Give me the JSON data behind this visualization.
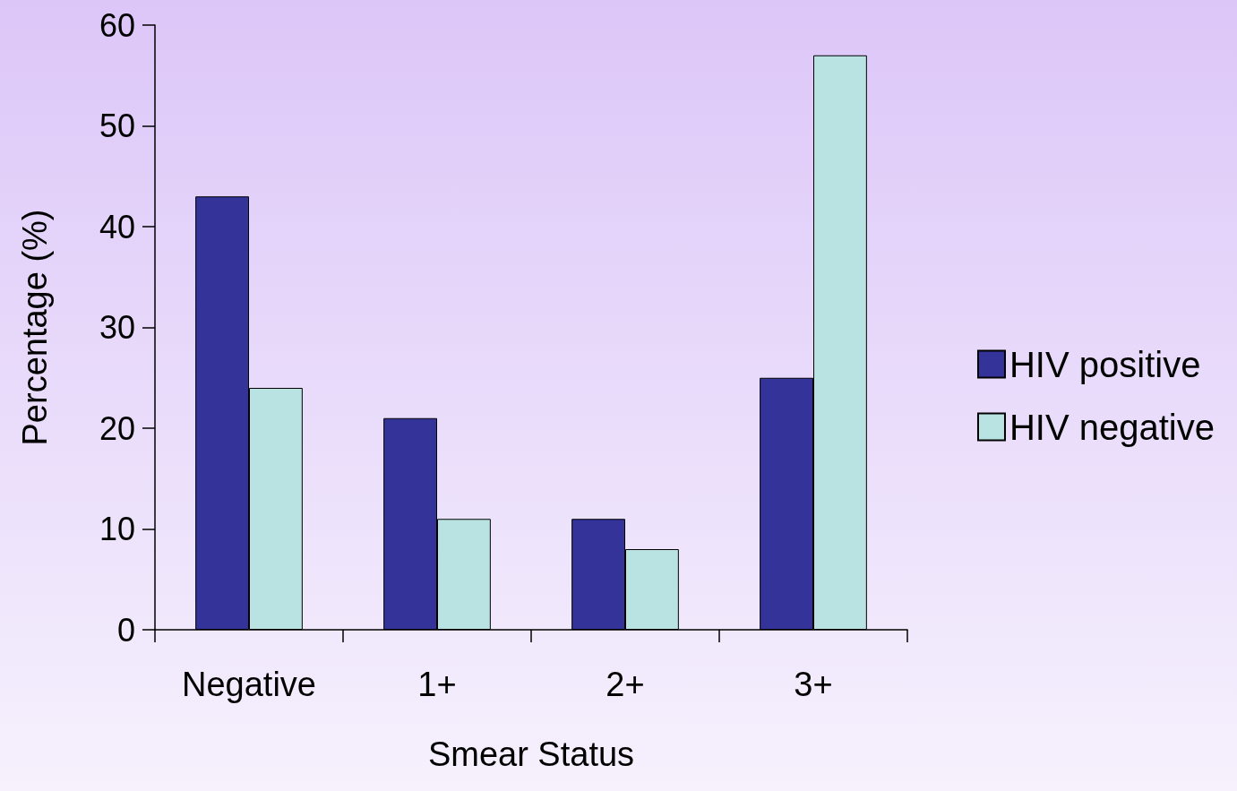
{
  "chart_data": {
    "type": "bar",
    "xlabel": "Smear Status",
    "ylabel": "Percentage (%)",
    "categories": [
      "Negative",
      "1+",
      "2+",
      "3+"
    ],
    "series": [
      {
        "name": "HIV positive",
        "color": "#333399",
        "values": [
          43,
          21,
          11,
          25
        ]
      },
      {
        "name": "HIV negative",
        "color": "#b9e2e2",
        "values": [
          24,
          11,
          8,
          57
        ]
      }
    ],
    "ylim": [
      0,
      60
    ],
    "yticks": [
      0,
      10,
      20,
      30,
      40,
      50,
      60
    ],
    "grid": false,
    "legend": "right"
  }
}
